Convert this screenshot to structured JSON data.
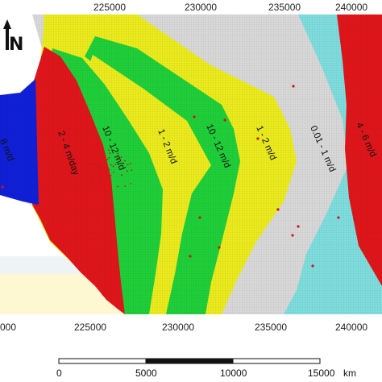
{
  "map": {
    "legend_colors": {
      "blue": "#1020d8",
      "red": "#e0161b",
      "green": "#1fd03a",
      "yellow": "#ecec1e",
      "gray": "#d9d9d9",
      "cyan": "#7fdede",
      "background_top": "#ffffff",
      "background_bottom": "#fdf7d2"
    },
    "north_arrow": {
      "letter": "N",
      "icon": "north-arrow-icon"
    },
    "x_ticks_top": [
      "225000",
      "230000",
      "235000",
      "240000"
    ],
    "x_ticks_bottom": [
      "000",
      "225000",
      "230000",
      "235000",
      "240000"
    ],
    "zones": [
      {
        "text": "8 m/d"
      },
      {
        "text": "2 - 4 m/day"
      },
      {
        "text": "10 - 12 m/d"
      },
      {
        "text": "1 - 2 m/d"
      },
      {
        "text": "10 - 12 m/d"
      },
      {
        "text": "1 - 2 m/d"
      },
      {
        "text": "0.01 - 1 m/d"
      },
      {
        "text": "4 - 6 m/d"
      }
    ],
    "scale_bar": {
      "labels": [
        "0",
        "5000",
        "10000",
        "15000"
      ],
      "unit": "km"
    }
  }
}
